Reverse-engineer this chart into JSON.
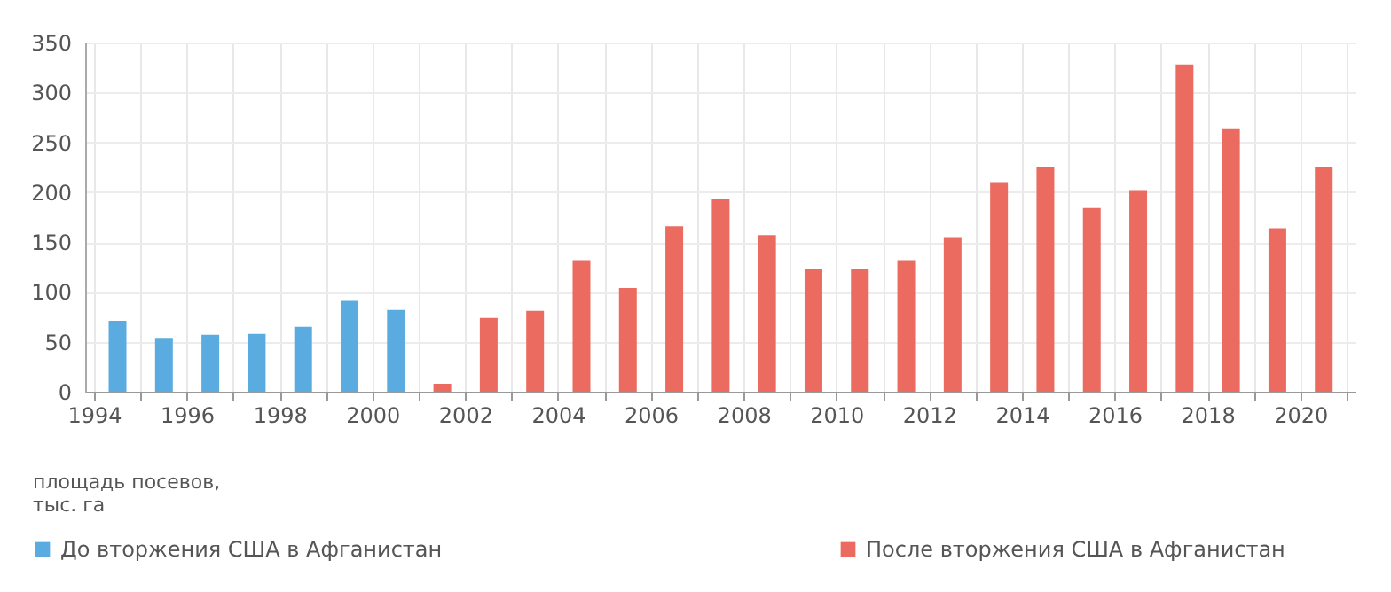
{
  "chart_data": {
    "type": "bar",
    "ylabel": "площадь посевов,\nтыс. га",
    "series": [
      {
        "name": "До вторжения США в Афганистан",
        "color": "#5aace0",
        "x": [
          1994,
          1995,
          1996,
          1997,
          1998,
          1999,
          2000
        ],
        "values": [
          71,
          54,
          57,
          58,
          65,
          91,
          82
        ]
      },
      {
        "name": "После вторжения США в Афганистан",
        "color": "#eb6b61",
        "x": [
          2001,
          2002,
          2003,
          2004,
          2005,
          2006,
          2007,
          2008,
          2009,
          2010,
          2011,
          2012,
          2013,
          2014,
          2015,
          2016,
          2017,
          2018,
          2019,
          2020
        ],
        "values": [
          8,
          74,
          81,
          132,
          104,
          166,
          193,
          157,
          123,
          123,
          132,
          155,
          210,
          225,
          184,
          202,
          328,
          264,
          164,
          225
        ]
      }
    ],
    "xlim": [
      1994,
      2021
    ],
    "xticks": [
      1994,
      {
        "value": 1995,
        "label": null
      },
      1996,
      {
        "value": 1997,
        "label": null
      },
      1998,
      {
        "value": 1999,
        "label": null
      },
      2000,
      {
        "value": 2001,
        "label": null
      },
      2002,
      {
        "value": 2003,
        "label": null
      },
      2004,
      {
        "value": 2005,
        "label": null
      },
      2006,
      {
        "value": 2007,
        "label": null
      },
      2008,
      {
        "value": 2009,
        "label": null
      },
      2010,
      {
        "value": 2011,
        "label": null
      },
      2012,
      {
        "value": 2013,
        "label": null
      },
      2014,
      {
        "value": 2015,
        "label": null
      },
      2016,
      {
        "value": 2017,
        "label": null
      },
      2018,
      {
        "value": 2019,
        "label": null
      },
      2020,
      {
        "value": 2021,
        "label": null
      }
    ],
    "ylim": [
      0,
      350
    ],
    "yticks": [
      0,
      50,
      100,
      150,
      200,
      250,
      300,
      350
    ],
    "grid": true,
    "legend": "bottom"
  }
}
